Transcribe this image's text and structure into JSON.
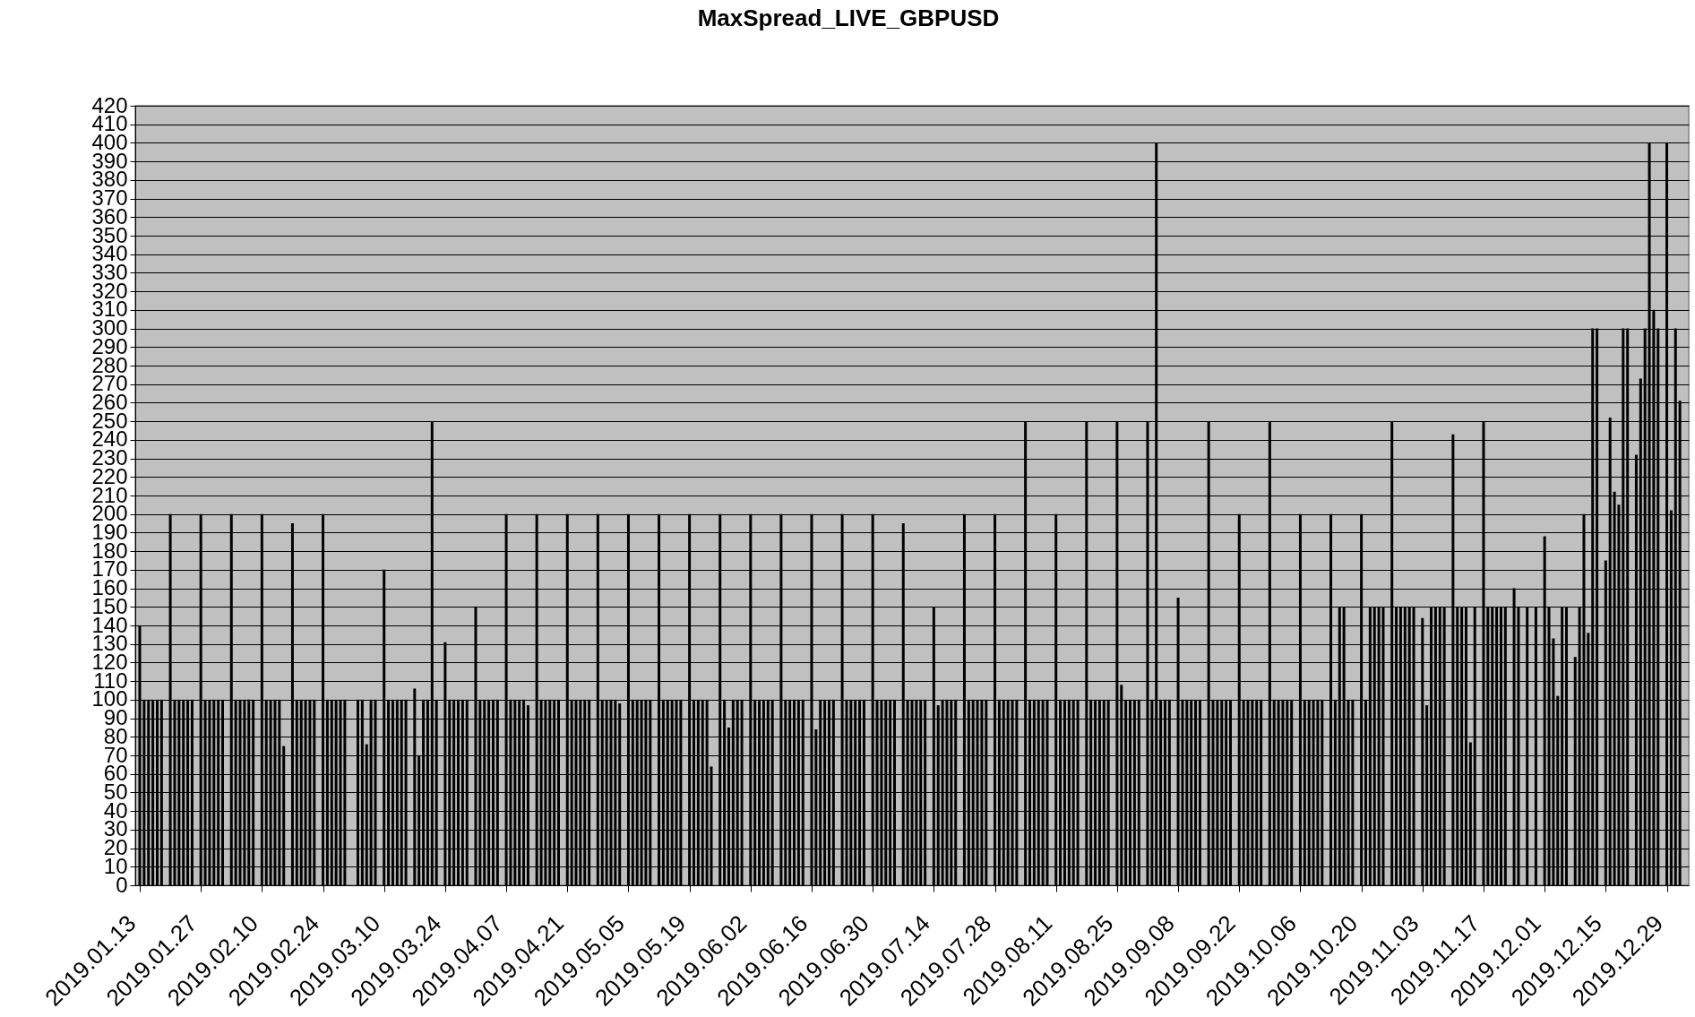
{
  "chart_data": {
    "type": "bar",
    "title": "MaxSpread_LIVE_GBPUSD",
    "color": "#000000",
    "x": [
      "2019-01-13",
      "2019-01-14",
      "2019-01-15",
      "2019-01-16",
      "2019-01-17",
      "2019-01-18",
      "2019-01-20",
      "2019-01-21",
      "2019-01-22",
      "2019-01-23",
      "2019-01-24",
      "2019-01-25",
      "2019-01-27",
      "2019-01-28",
      "2019-01-29",
      "2019-01-30",
      "2019-01-31",
      "2019-02-01",
      "2019-02-03",
      "2019-02-04",
      "2019-02-05",
      "2019-02-06",
      "2019-02-07",
      "2019-02-08",
      "2019-02-10",
      "2019-02-11",
      "2019-02-12",
      "2019-02-13",
      "2019-02-14",
      "2019-02-15",
      "2019-02-17",
      "2019-02-18",
      "2019-02-19",
      "2019-02-20",
      "2019-02-21",
      "2019-02-22",
      "2019-02-24",
      "2019-02-25",
      "2019-02-26",
      "2019-02-27",
      "2019-02-28",
      "2019-03-01",
      "2019-03-04",
      "2019-03-05",
      "2019-03-06",
      "2019-03-07",
      "2019-03-08",
      "2019-03-10",
      "2019-03-11",
      "2019-03-12",
      "2019-03-13",
      "2019-03-14",
      "2019-03-15",
      "2019-03-17",
      "2019-03-18",
      "2019-03-19",
      "2019-03-20",
      "2019-03-21",
      "2019-03-22",
      "2019-03-24",
      "2019-03-25",
      "2019-03-26",
      "2019-03-27",
      "2019-03-28",
      "2019-03-29",
      "2019-03-31",
      "2019-04-01",
      "2019-04-02",
      "2019-04-03",
      "2019-04-04",
      "2019-04-05",
      "2019-04-07",
      "2019-04-08",
      "2019-04-09",
      "2019-04-10",
      "2019-04-11",
      "2019-04-12",
      "2019-04-14",
      "2019-04-15",
      "2019-04-16",
      "2019-04-17",
      "2019-04-18",
      "2019-04-19",
      "2019-04-21",
      "2019-04-22",
      "2019-04-23",
      "2019-04-24",
      "2019-04-25",
      "2019-04-26",
      "2019-04-28",
      "2019-04-29",
      "2019-04-30",
      "2019-05-01",
      "2019-05-02",
      "2019-05-03",
      "2019-05-05",
      "2019-05-06",
      "2019-05-07",
      "2019-05-08",
      "2019-05-09",
      "2019-05-10",
      "2019-05-12",
      "2019-05-13",
      "2019-05-14",
      "2019-05-15",
      "2019-05-16",
      "2019-05-17",
      "2019-05-19",
      "2019-05-20",
      "2019-05-21",
      "2019-05-22",
      "2019-05-23",
      "2019-05-24",
      "2019-05-26",
      "2019-05-27",
      "2019-05-28",
      "2019-05-29",
      "2019-05-30",
      "2019-05-31",
      "2019-06-02",
      "2019-06-03",
      "2019-06-04",
      "2019-06-05",
      "2019-06-06",
      "2019-06-07",
      "2019-06-09",
      "2019-06-10",
      "2019-06-11",
      "2019-06-12",
      "2019-06-13",
      "2019-06-14",
      "2019-06-16",
      "2019-06-17",
      "2019-06-18",
      "2019-06-19",
      "2019-06-20",
      "2019-06-21",
      "2019-06-23",
      "2019-06-24",
      "2019-06-25",
      "2019-06-26",
      "2019-06-27",
      "2019-06-28",
      "2019-06-30",
      "2019-07-01",
      "2019-07-02",
      "2019-07-03",
      "2019-07-04",
      "2019-07-05",
      "2019-07-07",
      "2019-07-08",
      "2019-07-09",
      "2019-07-10",
      "2019-07-11",
      "2019-07-12",
      "2019-07-14",
      "2019-07-15",
      "2019-07-16",
      "2019-07-17",
      "2019-07-18",
      "2019-07-19",
      "2019-07-21",
      "2019-07-22",
      "2019-07-23",
      "2019-07-24",
      "2019-07-25",
      "2019-07-26",
      "2019-07-28",
      "2019-07-29",
      "2019-07-30",
      "2019-07-31",
      "2019-08-01",
      "2019-08-02",
      "2019-08-04",
      "2019-08-05",
      "2019-08-06",
      "2019-08-07",
      "2019-08-08",
      "2019-08-09",
      "2019-08-11",
      "2019-08-12",
      "2019-08-13",
      "2019-08-14",
      "2019-08-15",
      "2019-08-16",
      "2019-08-18",
      "2019-08-19",
      "2019-08-20",
      "2019-08-21",
      "2019-08-22",
      "2019-08-23",
      "2019-08-25",
      "2019-08-26",
      "2019-08-27",
      "2019-08-28",
      "2019-08-29",
      "2019-08-30",
      "2019-09-01",
      "2019-09-02",
      "2019-09-03",
      "2019-09-04",
      "2019-09-05",
      "2019-09-06",
      "2019-09-08",
      "2019-09-09",
      "2019-09-10",
      "2019-09-11",
      "2019-09-12",
      "2019-09-13",
      "2019-09-15",
      "2019-09-16",
      "2019-09-17",
      "2019-09-18",
      "2019-09-19",
      "2019-09-20",
      "2019-09-22",
      "2019-09-23",
      "2019-09-24",
      "2019-09-25",
      "2019-09-26",
      "2019-09-27",
      "2019-09-29",
      "2019-09-30",
      "2019-10-01",
      "2019-10-02",
      "2019-10-03",
      "2019-10-04",
      "2019-10-06",
      "2019-10-07",
      "2019-10-08",
      "2019-10-09",
      "2019-10-10",
      "2019-10-11",
      "2019-10-13",
      "2019-10-14",
      "2019-10-15",
      "2019-10-16",
      "2019-10-17",
      "2019-10-18",
      "2019-10-20",
      "2019-10-21",
      "2019-10-22",
      "2019-10-23",
      "2019-10-24",
      "2019-10-25",
      "2019-10-27",
      "2019-10-28",
      "2019-10-29",
      "2019-10-30",
      "2019-10-31",
      "2019-11-01",
      "2019-11-03",
      "2019-11-04",
      "2019-11-05",
      "2019-11-06",
      "2019-11-07",
      "2019-11-08",
      "2019-11-10",
      "2019-11-11",
      "2019-11-12",
      "2019-11-13",
      "2019-11-14",
      "2019-11-15",
      "2019-11-17",
      "2019-11-18",
      "2019-11-19",
      "2019-11-20",
      "2019-11-21",
      "2019-11-22",
      "2019-11-24",
      "2019-11-25",
      "2019-11-27",
      "2019-11-29",
      "2019-12-01",
      "2019-12-02",
      "2019-12-03",
      "2019-12-04",
      "2019-12-05",
      "2019-12-06",
      "2019-12-08",
      "2019-12-09",
      "2019-12-10",
      "2019-12-11",
      "2019-12-12",
      "2019-12-13",
      "2019-12-15",
      "2019-12-16",
      "2019-12-17",
      "2019-12-18",
      "2019-12-19",
      "2019-12-20",
      "2019-12-22",
      "2019-12-23",
      "2019-12-24",
      "2019-12-25",
      "2019-12-26",
      "2019-12-27",
      "2019-12-29",
      "2019-12-30",
      "2019-12-31",
      "2020-01-01"
    ],
    "values": [
      140,
      100,
      100,
      100,
      100,
      100,
      200,
      100,
      100,
      100,
      100,
      100,
      200,
      100,
      100,
      100,
      100,
      100,
      200,
      100,
      100,
      100,
      100,
      100,
      200,
      100,
      100,
      100,
      100,
      75,
      195,
      100,
      100,
      100,
      100,
      100,
      200,
      100,
      100,
      100,
      100,
      100,
      100,
      100,
      76,
      100,
      100,
      170,
      100,
      100,
      100,
      100,
      100,
      106,
      70,
      100,
      100,
      250,
      100,
      131,
      100,
      100,
      100,
      100,
      100,
      150,
      100,
      100,
      100,
      100,
      100,
      200,
      100,
      100,
      100,
      100,
      97,
      200,
      100,
      100,
      100,
      100,
      100,
      200,
      100,
      100,
      100,
      100,
      100,
      200,
      100,
      100,
      100,
      100,
      98,
      200,
      100,
      100,
      100,
      100,
      100,
      200,
      100,
      100,
      100,
      100,
      100,
      200,
      100,
      100,
      100,
      100,
      64,
      200,
      100,
      85,
      100,
      100,
      100,
      200,
      100,
      100,
      100,
      100,
      100,
      200,
      100,
      100,
      100,
      100,
      100,
      200,
      84,
      100,
      100,
      100,
      100,
      200,
      100,
      100,
      100,
      100,
      100,
      200,
      100,
      100,
      100,
      100,
      100,
      195,
      100,
      100,
      100,
      100,
      100,
      150,
      97,
      100,
      100,
      100,
      100,
      200,
      100,
      100,
      100,
      100,
      100,
      200,
      100,
      100,
      100,
      100,
      100,
      250,
      100,
      100,
      100,
      100,
      100,
      200,
      100,
      100,
      100,
      100,
      100,
      250,
      100,
      100,
      100,
      100,
      100,
      250,
      108,
      100,
      100,
      100,
      100,
      250,
      100,
      400,
      100,
      100,
      100,
      155,
      100,
      100,
      100,
      100,
      100,
      250,
      100,
      100,
      100,
      100,
      100,
      200,
      100,
      100,
      100,
      100,
      100,
      250,
      100,
      100,
      100,
      100,
      100,
      200,
      100,
      100,
      100,
      100,
      100,
      200,
      100,
      150,
      150,
      100,
      100,
      200,
      100,
      150,
      150,
      150,
      150,
      250,
      150,
      150,
      150,
      150,
      150,
      144,
      97,
      150,
      150,
      150,
      150,
      243,
      150,
      150,
      150,
      77,
      150,
      250,
      150,
      150,
      150,
      150,
      150,
      160,
      150,
      150,
      150,
      188,
      150,
      133,
      102,
      150,
      150,
      123,
      150,
      200,
      136,
      300,
      300,
      175,
      252,
      212,
      205,
      300,
      300,
      232,
      273,
      300,
      400,
      310,
      300,
      400,
      202,
      300,
      261
    ],
    "xlim": [
      "2019-01-13",
      "2020-01-02"
    ],
    "xticks": [
      {
        "value": "2019-01-13",
        "label": "2019.01.13"
      },
      {
        "value": "2019-01-27",
        "label": "2019.01.27"
      },
      {
        "value": "2019-02-10",
        "label": "2019.02.10"
      },
      {
        "value": "2019-02-24",
        "label": "2019.02.24"
      },
      {
        "value": "2019-03-10",
        "label": "2019.03.10"
      },
      {
        "value": "2019-03-24",
        "label": "2019.03.24"
      },
      {
        "value": "2019-04-07",
        "label": "2019.04.07"
      },
      {
        "value": "2019-04-21",
        "label": "2019.04.21"
      },
      {
        "value": "2019-05-05",
        "label": "2019.05.05"
      },
      {
        "value": "2019-05-19",
        "label": "2019.05.19"
      },
      {
        "value": "2019-06-02",
        "label": "2019.06.02"
      },
      {
        "value": "2019-06-16",
        "label": "2019.06.16"
      },
      {
        "value": "2019-06-30",
        "label": "2019.06.30"
      },
      {
        "value": "2019-07-14",
        "label": "2019.07.14"
      },
      {
        "value": "2019-07-28",
        "label": "2019.07.28"
      },
      {
        "value": "2019-08-11",
        "label": "2019.08.11"
      },
      {
        "value": "2019-08-25",
        "label": "2019.08.25"
      },
      {
        "value": "2019-09-08",
        "label": "2019.09.08"
      },
      {
        "value": "2019-09-22",
        "label": "2019.09.22"
      },
      {
        "value": "2019-10-06",
        "label": "2019.10.06"
      },
      {
        "value": "2019-10-20",
        "label": "2019.10.20"
      },
      {
        "value": "2019-11-03",
        "label": "2019.11.03"
      },
      {
        "value": "2019-11-17",
        "label": "2019.11.17"
      },
      {
        "value": "2019-12-01",
        "label": "2019.12.01"
      },
      {
        "value": "2019-12-15",
        "label": "2019.12.15"
      },
      {
        "value": "2019-12-29",
        "label": "2019.12.29"
      }
    ],
    "ylim": [
      0,
      420
    ],
    "yticks": [
      0,
      10,
      20,
      30,
      40,
      50,
      60,
      70,
      80,
      90,
      100,
      110,
      120,
      130,
      140,
      150,
      160,
      170,
      180,
      190,
      200,
      210,
      220,
      230,
      240,
      250,
      260,
      270,
      280,
      290,
      300,
      310,
      320,
      330,
      340,
      350,
      360,
      370,
      380,
      390,
      400,
      410,
      420
    ],
    "grid": "y"
  }
}
